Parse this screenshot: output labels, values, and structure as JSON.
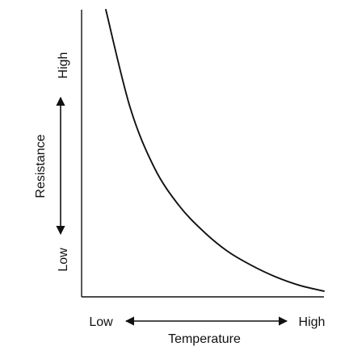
{
  "chart_data": {
    "type": "line",
    "title": "",
    "xlabel": "Temperature",
    "ylabel": "Resistance",
    "x_tick_labels": [
      "Low",
      "High"
    ],
    "y_tick_labels": [
      "Low",
      "High"
    ],
    "x_scale": "qualitative",
    "y_scale": "qualitative",
    "xlim": [
      0,
      1
    ],
    "ylim": [
      0,
      1
    ],
    "grid": false,
    "legend": "none",
    "line_color": "#111111",
    "series": [
      {
        "x": [
          0.1,
          0.2,
          0.3,
          0.4,
          0.5,
          0.6,
          0.7,
          0.8,
          0.9,
          1.0
        ],
        "y": [
          1.0,
          0.66,
          0.45,
          0.32,
          0.23,
          0.16,
          0.11,
          0.07,
          0.04,
          0.02
        ]
      }
    ]
  }
}
